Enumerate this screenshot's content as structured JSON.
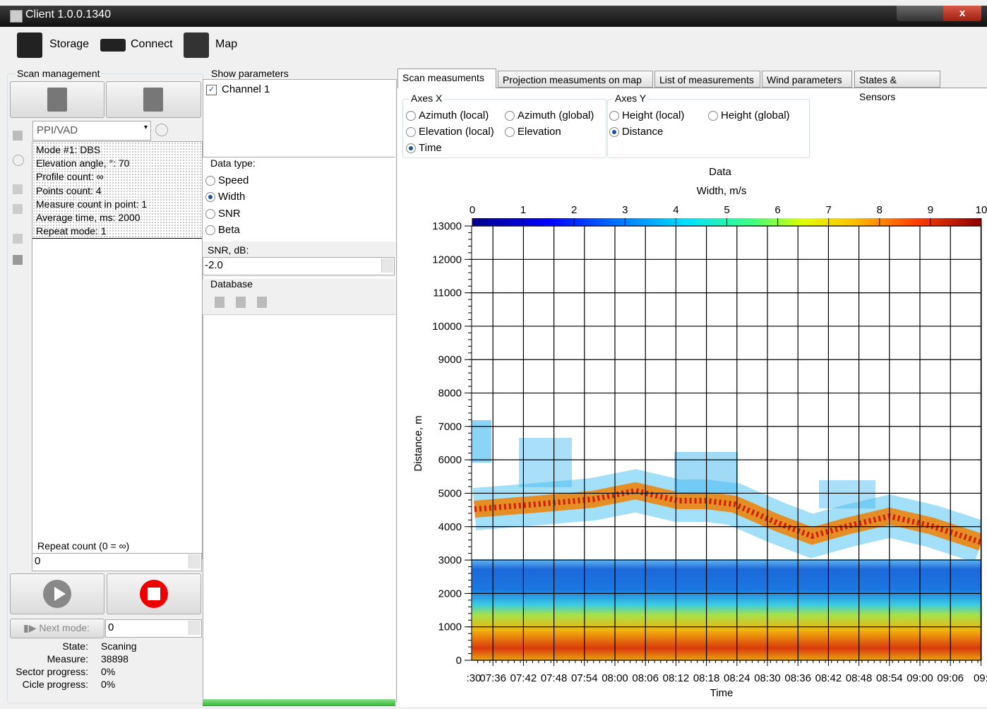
{
  "window": {
    "title": "Client 1.0.0.1340"
  },
  "toolbar": [
    "Storage",
    "Connect",
    "Map"
  ],
  "scan_management": {
    "title": "Scan management",
    "mode": "PPI/VAD",
    "info": [
      "Mode #1: DBS",
      "Elevation angle, °: 70",
      "Profile count: ∞",
      "Points count: 4",
      "Measure count in point: 1",
      "Average time, ms: 2000",
      "Repeat mode: 1"
    ],
    "repeat_count_label": "Repeat count (0 = ∞)",
    "repeat_count": "0",
    "next_mode": "Next mode:",
    "next_mode_value": "0",
    "status": [
      {
        "label": "State:",
        "value": "Scaning"
      },
      {
        "label": "Measure:",
        "value": "38898"
      },
      {
        "label": "Sector progress:",
        "value": "0%"
      },
      {
        "label": "Cicle progress:",
        "value": "0%"
      }
    ]
  },
  "show_parameters": {
    "title": "Show parameters",
    "channels": [
      "Channel 1"
    ],
    "data_type": {
      "title": "Data type:",
      "options": [
        "Speed",
        "Width",
        "SNR",
        "Beta"
      ],
      "selected": "Width"
    },
    "snr_label": "SNR, dB:",
    "snr": "-2.0",
    "database": "Database"
  },
  "tabs": {
    "items": [
      "Scan measuments",
      "Projection measuments on map",
      "List of measurements",
      "Wind parameters",
      "States & Sensors"
    ],
    "selected": "Scan measuments"
  },
  "axes_x": {
    "title": "Axes X",
    "options": [
      "Azimuth (local)",
      "Azimuth (global)",
      "Elevation (local)",
      "Elevation",
      "Time"
    ],
    "selected": "Time"
  },
  "axes_y": {
    "title": "Axes Y",
    "options": [
      "Height (local)",
      "Height (global)",
      "Distance"
    ],
    "selected": "Distance"
  },
  "chart_data": {
    "type": "heatmap",
    "title": "Data",
    "colorbar_label": "Width, m/s",
    "clim": [
      0,
      10
    ],
    "cticks": [
      0,
      1,
      2,
      3,
      4,
      5,
      6,
      7,
      8,
      9,
      10
    ],
    "ylim": [
      0,
      13000
    ],
    "yticks": [
      0,
      1000,
      2000,
      3000,
      4000,
      5000,
      6000,
      7000,
      8000,
      9000,
      10000,
      11000,
      12000,
      13000
    ],
    "xtick_labels": [
      ":30",
      "07:36",
      "07:42",
      "07:48",
      "07:54",
      "08:00",
      "08:06",
      "08:12",
      "08:18",
      "08:24",
      "08:30",
      "08:36",
      "08:42",
      "08:48",
      "08:54",
      "09:00",
      "09:06",
      "09:"
    ],
    "xlabel": "Time",
    "ylabel": "Distance, m",
    "grid": true
  }
}
